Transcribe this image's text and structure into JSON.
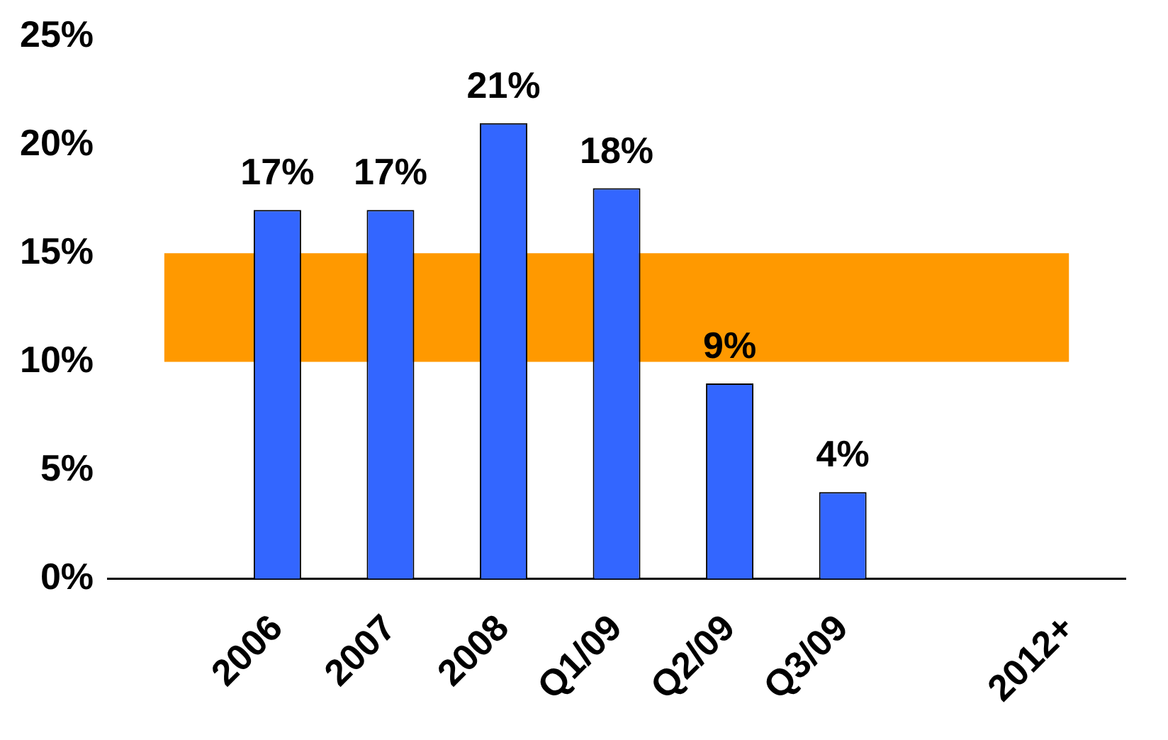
{
  "chart_data": {
    "type": "bar",
    "categories": [
      null,
      "2006",
      "2007",
      "2008",
      "Q1/09",
      "Q2/09",
      "Q3/09",
      null,
      "2012+"
    ],
    "values": [
      null,
      17,
      17,
      21,
      18,
      9,
      4,
      null,
      null
    ],
    "value_labels": [
      null,
      "17%",
      "17%",
      "21%",
      "18%",
      "9%",
      "4%",
      null,
      null
    ],
    "color": "#3366ff",
    "ylim": [
      0,
      25
    ],
    "yticks": [
      {
        "value": 0,
        "label": "0%"
      },
      {
        "value": 5,
        "label": "5%"
      },
      {
        "value": 10,
        "label": "10%"
      },
      {
        "value": 15,
        "label": "15%"
      },
      {
        "value": 20,
        "label": "20%"
      },
      {
        "value": 25,
        "label": "25%"
      }
    ],
    "bands": [
      {
        "axis": "y",
        "from": 10,
        "to": 15,
        "color": "#ff9900"
      }
    ],
    "grid": false,
    "legend": false
  }
}
